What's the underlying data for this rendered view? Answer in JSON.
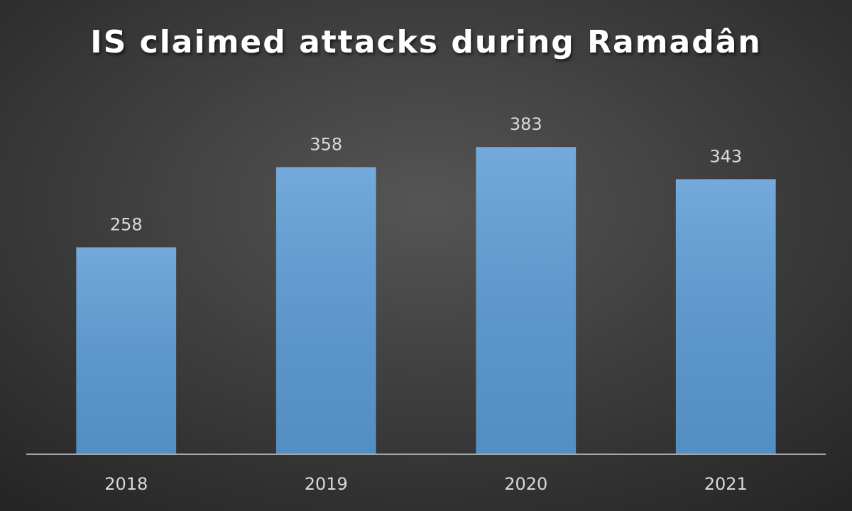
{
  "chart_data": {
    "type": "bar",
    "title": "IS claimed attacks during Ramadân",
    "categories": [
      "2018",
      "2019",
      "2020",
      "2021"
    ],
    "values": [
      258,
      358,
      383,
      343
    ],
    "color": "#5b9bd5",
    "ylim": [
      0,
      500
    ]
  }
}
